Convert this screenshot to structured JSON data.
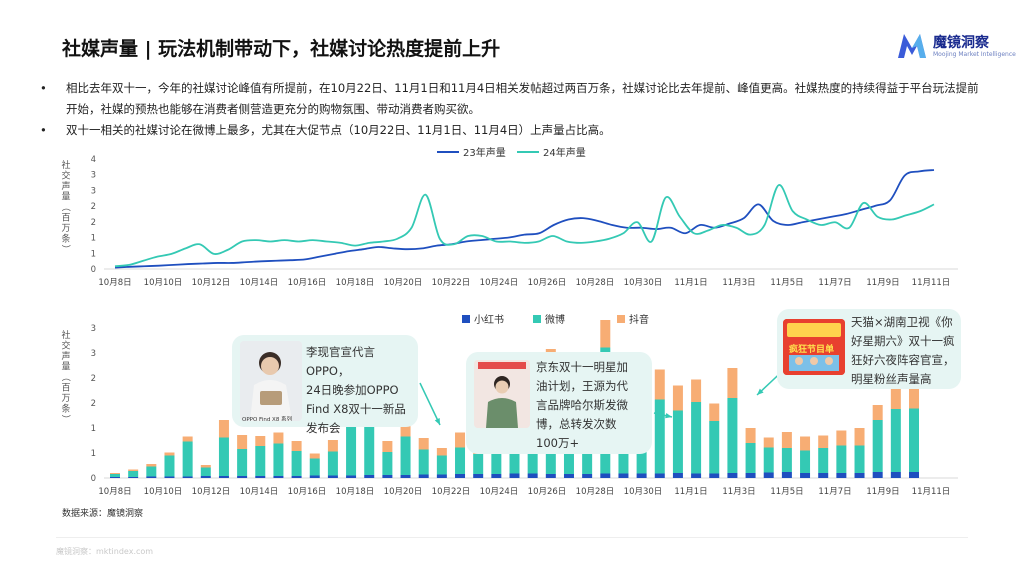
{
  "title": "社媒声量 | 玩法机制带动下，社媒讨论热度提前上升",
  "logo": {
    "name": "魔镜洞察",
    "subtitle": "Moojing Market Intelligence",
    "accent": "#3a5bd9"
  },
  "bullets": [
    "相比去年双十一，今年的社媒讨论峰值有所提前，在10月22日、11月1日和11月4日相关发帖超过两百万条，社媒讨论比去年提前、峰值更高。社媒热度的持续得益于平台玩法提前开始，社媒的预热也能够在消费者侧营造更充分的购物氛围、带动消费者购买欲。",
    "双十一相关的社媒讨论在微博上最多，尤其在大促节点（10月22日、11月1日、11月4日）上声量占比高。"
  ],
  "bullet_symbol": "•",
  "source": "数据来源：魔镜洞察",
  "footer": "魔镜洞察：mktindex.com",
  "chart_data": [
    {
      "type": "line",
      "ylabel": "社交声量（百万条）",
      "ylim": [
        0,
        4
      ],
      "yticks": [
        "0",
        "1",
        "1",
        "2",
        "2",
        "3",
        "3",
        "4"
      ],
      "grid": false,
      "legend": "top-center",
      "x_tick_labels": [
        "10月8日",
        "10月10日",
        "10月12日",
        "10月14日",
        "10月16日",
        "10月18日",
        "10月20日",
        "10月22日",
        "10月24日",
        "10月26日",
        "10月28日",
        "10月30日",
        "11月1日",
        "11月3日",
        "11月5日",
        "11月7日",
        "11月9日",
        "11月11日"
      ],
      "series": [
        {
          "name": "23年声量",
          "color": "#1f4fbf",
          "values": [
            0.05,
            0.08,
            0.1,
            0.12,
            0.15,
            0.18,
            0.2,
            0.22,
            0.22,
            0.25,
            0.28,
            0.3,
            0.32,
            0.35,
            0.45,
            0.55,
            0.65,
            0.72,
            0.8,
            0.75,
            0.72,
            0.75,
            0.85,
            0.9,
            1.0,
            1.05,
            1.1,
            1.15,
            1.25,
            1.3,
            1.6,
            1.8,
            1.85,
            1.75,
            1.6,
            1.5,
            1.5,
            1.45,
            1.5,
            1.3,
            1.6,
            1.5,
            1.65,
            1.85,
            2.35,
            1.75,
            1.6,
            1.7,
            1.8,
            1.9,
            2.0,
            2.15,
            2.3,
            2.5,
            3.4,
            3.55,
            3.6
          ]
        },
        {
          "name": "24年声量",
          "color": "#34c9b4",
          "values": [
            0.1,
            0.15,
            0.3,
            0.45,
            0.55,
            0.75,
            0.9,
            0.55,
            0.7,
            1.0,
            1.05,
            1.0,
            1.05,
            1.0,
            1.05,
            1.0,
            0.95,
            0.85,
            0.95,
            1.0,
            1.1,
            1.5,
            2.7,
            1.1,
            0.9,
            1.2,
            1.2,
            1.0,
            1.0,
            0.95,
            1.0,
            1.2,
            1.0,
            0.95,
            1.0,
            1.1,
            1.3,
            1.7,
            1.0,
            2.6,
            1.9,
            1.3,
            1.4,
            1.6,
            1.5,
            1.25,
            1.6,
            3.05,
            2.1,
            1.8,
            1.6,
            1.7,
            1.5,
            2.4,
            1.9,
            1.8,
            1.95,
            2.1,
            2.35
          ]
        }
      ]
    },
    {
      "type": "bar",
      "stacked": true,
      "ylabel": "社交声量（百万条）",
      "ylim": [
        0,
        3
      ],
      "yticks": [
        "0",
        "1",
        "1",
        "2",
        "2",
        "3",
        "3"
      ],
      "grid": false,
      "legend": "top-center",
      "x_tick_labels": [
        "10月8日",
        "10月10日",
        "10月12日",
        "10月14日",
        "10月16日",
        "10月18日",
        "10月20日",
        "10月22日",
        "10月24日",
        "10月26日",
        "10月28日",
        "10月30日",
        "11月1日",
        "11月3日",
        "11月5日",
        "11月7日",
        "11月9日",
        "11月11日"
      ],
      "series": [
        {
          "name": "小红书",
          "color": "#1f4fbf",
          "values": [
            0.02,
            0.02,
            0.03,
            0.03,
            0.03,
            0.04,
            0.04,
            0.04,
            0.04,
            0.04,
            0.04,
            0.05,
            0.05,
            0.05,
            0.06,
            0.06,
            0.06,
            0.07,
            0.07,
            0.08,
            0.08,
            0.08,
            0.09,
            0.09,
            0.08,
            0.08,
            0.08,
            0.09,
            0.09,
            0.09,
            0.09,
            0.1,
            0.09,
            0.09,
            0.1,
            0.1,
            0.11,
            0.12,
            0.1,
            0.1,
            0.1,
            0.1,
            0.12,
            0.12,
            0.12
          ]
        },
        {
          "name": "微博",
          "color": "#34c9b4",
          "values": [
            0.06,
            0.12,
            0.2,
            0.42,
            0.7,
            0.17,
            0.77,
            0.54,
            0.6,
            0.65,
            0.5,
            0.34,
            0.48,
            1.08,
            1.76,
            0.46,
            0.77,
            0.5,
            0.38,
            0.53,
            0.4,
            0.5,
            0.75,
            1.18,
            2.0,
            1.45,
            1.42,
            2.52,
            1.3,
            0.6,
            1.48,
            1.25,
            1.43,
            1.05,
            1.5,
            0.6,
            0.5,
            0.48,
            0.45,
            0.5,
            0.55,
            0.55,
            1.04,
            1.26,
            1.27
          ]
        },
        {
          "name": "抖音",
          "color": "#f7ad74",
          "values": [
            0.02,
            0.03,
            0.05,
            0.06,
            0.1,
            0.05,
            0.35,
            0.28,
            0.2,
            0.22,
            0.2,
            0.1,
            0.23,
            0.36,
            0.48,
            0.22,
            0.4,
            0.23,
            0.15,
            0.3,
            0.2,
            0.17,
            0.4,
            0.35,
            0.5,
            0.25,
            0.3,
            0.55,
            0.3,
            0.2,
            0.6,
            0.5,
            0.45,
            0.35,
            0.6,
            0.3,
            0.2,
            0.32,
            0.28,
            0.25,
            0.3,
            0.35,
            0.3,
            0.4,
            0.65
          ]
        }
      ]
    }
  ],
  "bars_x_index": [
    0,
    1,
    2,
    3,
    4,
    5,
    6,
    7,
    8,
    9,
    10,
    11,
    12,
    13,
    14,
    15,
    16,
    17,
    18,
    19,
    20,
    21,
    22,
    23,
    24,
    25,
    26,
    27,
    28,
    29,
    30,
    31,
    32,
    33,
    34,
    35,
    36,
    37,
    38,
    39,
    40,
    41,
    42,
    43,
    44
  ],
  "callouts": [
    {
      "text_lines": [
        "李现官宣代言OPPO，",
        "24日晚参加OPPO",
        "Find X8双十一新品",
        "发布会"
      ],
      "image_caption": "OPPO Find X8 系列",
      "image_icon": "person-photo-icon"
    },
    {
      "text_lines": [
        "京东双十一明星加",
        "油计划，王源为代",
        "言品牌哈尔斯发微",
        "博，总转发次数",
        "100万+"
      ],
      "image_icon": "person-photo-icon"
    },
    {
      "text_lines": [
        "天猫×湖南卫视《你",
        "好星期六》双十一疯",
        "狂好六夜阵容官宣，",
        "明星粉丝声量高"
      ],
      "image_caption": "疯狂节目单",
      "image_icon": "event-poster-icon"
    }
  ]
}
